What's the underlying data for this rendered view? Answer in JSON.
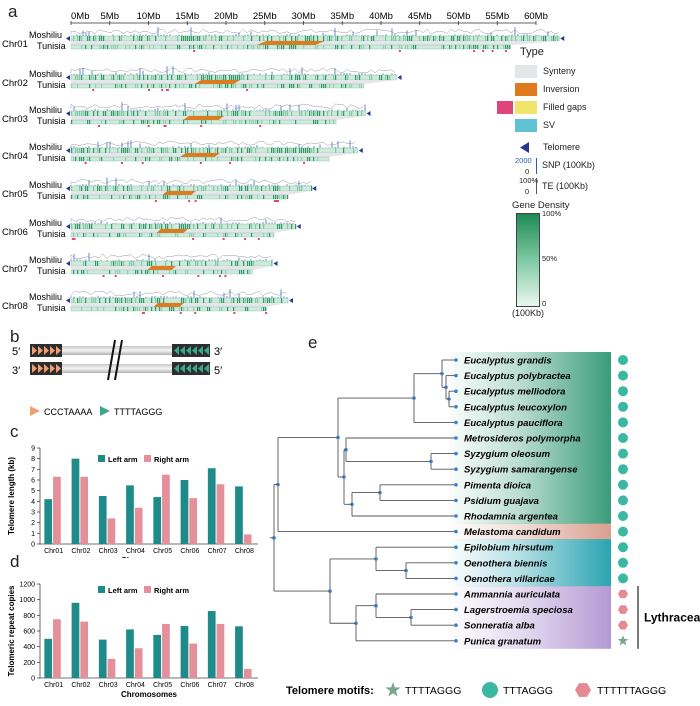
{
  "panels": {
    "a": "a",
    "b": "b",
    "c": "c",
    "d": "d",
    "e": "e"
  },
  "panel_a": {
    "scale_ticks": [
      "0Mb",
      "5Mb",
      "10Mb",
      "15Mb",
      "20Mb",
      "25Mb",
      "30Mb",
      "35Mb",
      "40Mb",
      "45Mb",
      "50Mb",
      "55Mb",
      "60Mb"
    ],
    "chromosomes": [
      {
        "name": "Chr01",
        "top": "Moshiliu",
        "bottom": "Tunisia",
        "length_mb": 63
      },
      {
        "name": "Chr02",
        "top": "Moshiliu",
        "bottom": "Tunisia",
        "length_mb": 42
      },
      {
        "name": "Chr03",
        "top": "Moshiliu",
        "bottom": "Tunisia",
        "length_mb": 38
      },
      {
        "name": "Chr04",
        "top": "Moshiliu",
        "bottom": "Tunisia",
        "length_mb": 37
      },
      {
        "name": "Chr05",
        "top": "Moshiliu",
        "bottom": "Tunisia",
        "length_mb": 31
      },
      {
        "name": "Chr06",
        "top": "Moshiliu",
        "bottom": "Tunisia",
        "length_mb": 29
      },
      {
        "name": "Chr07",
        "top": "Moshiliu",
        "bottom": "Tunisia",
        "length_mb": 26
      },
      {
        "name": "Chr08",
        "top": "Moshiliu",
        "bottom": "Tunisia",
        "length_mb": 28
      }
    ],
    "legend": {
      "type_title": "Type",
      "items": [
        {
          "label": "Synteny",
          "color": "#e4e6ea"
        },
        {
          "label": "Inversion",
          "color": "#e07a1f"
        },
        {
          "label": "Filled gaps",
          "color": "#f0e46a",
          "extra_color": "#e0457a"
        },
        {
          "label": "SV",
          "color": "#5fc3d3"
        }
      ],
      "telomere": "Telomere",
      "snp_label": "SNP  (100Kb)",
      "snp_scale": "2000",
      "snp_zero": "0",
      "te_label": "TE  (100Kb)",
      "te_scale": "100%",
      "te_zero": "0",
      "gd_title": "Gene Density",
      "gd_ticks": [
        "100%",
        "50%",
        "0"
      ],
      "gd_unit": "(100Kb)"
    }
  },
  "panel_b": {
    "five_prime": "5′",
    "three_prime": "3′",
    "motif1": "CCCTAAAA",
    "motif2": "TTTTAGGG",
    "motif1_color": "#f0a070",
    "motif2_color": "#3aa88a"
  },
  "chart_data": [
    {
      "type": "bar",
      "title": "",
      "xlabel": "Chromosomes",
      "ylabel": "Telomere length (kb)",
      "ylim": [
        0,
        9
      ],
      "yticks": [
        0,
        1,
        2,
        3,
        4,
        5,
        6,
        7,
        8,
        9
      ],
      "categories": [
        "Chr01",
        "Chr02",
        "Chr03",
        "Chr04",
        "Chr05",
        "Chr06",
        "Chr07",
        "Chr08"
      ],
      "series": [
        {
          "name": "Left arm",
          "color": "#1f8a8a",
          "values": [
            4.2,
            8.0,
            4.5,
            5.5,
            4.4,
            6.0,
            7.1,
            5.4
          ]
        },
        {
          "name": "Right arm",
          "color": "#e3909a",
          "values": [
            6.3,
            6.3,
            2.4,
            3.4,
            6.5,
            4.3,
            5.6,
            0.9
          ]
        }
      ],
      "legend": "top"
    },
    {
      "type": "bar",
      "title": "",
      "xlabel": "Chromosomes",
      "ylabel": "Telomeric repeat copies",
      "ylim": [
        0,
        1200
      ],
      "yticks": [
        0,
        200,
        400,
        600,
        800,
        1000,
        1200
      ],
      "categories": [
        "Chr01",
        "Chr02",
        "Chr03",
        "Chr04",
        "Chr05",
        "Chr06",
        "Chr07",
        "Chr08"
      ],
      "series": [
        {
          "name": "Left arm",
          "color": "#1f8a8a",
          "values": [
            500,
            960,
            490,
            620,
            550,
            665,
            855,
            660
          ]
        },
        {
          "name": "Right arm",
          "color": "#e3909a",
          "values": [
            750,
            720,
            245,
            380,
            690,
            440,
            690,
            115
          ]
        }
      ],
      "legend": "top"
    }
  ],
  "panel_e": {
    "species": [
      {
        "name": "Eucalyptus grandis",
        "motif": "TTTAGGG"
      },
      {
        "name": "Eucalyptus polybractea",
        "motif": "TTTAGGG"
      },
      {
        "name": "Eucalyptus melliodora",
        "motif": "TTTAGGG"
      },
      {
        "name": "Eucalyptus leucoxylon",
        "motif": "TTTAGGG"
      },
      {
        "name": "Eucalyptus pauciflora",
        "motif": "TTTAGGG"
      },
      {
        "name": "Metrosideros polymorpha",
        "motif": "TTTAGGG"
      },
      {
        "name": "Syzygium oleosum",
        "motif": "TTTAGGG"
      },
      {
        "name": "Syzygium samarangense",
        "motif": "TTTAGGG"
      },
      {
        "name": "Pimenta dioica",
        "motif": "TTTAGGG"
      },
      {
        "name": "Psidium guajava",
        "motif": "TTTAGGG"
      },
      {
        "name": "Rhodamnia argentea",
        "motif": "TTTAGGG"
      },
      {
        "name": "Melastoma candidum",
        "motif": "TTTAGGG"
      },
      {
        "name": "Epilobium hirsutum",
        "motif": "TTTAGGG"
      },
      {
        "name": "Oenothera biennis",
        "motif": "TTTAGGG"
      },
      {
        "name": "Oenothera villaricae",
        "motif": "TTTAGGG"
      },
      {
        "name": "Ammannia auriculata",
        "motif": "TTTTTTAGGG"
      },
      {
        "name": "Lagerstroemia speciosa",
        "motif": "TTTTTTAGGG"
      },
      {
        "name": "Sonneratia alba",
        "motif": "TTTTTTAGGG"
      },
      {
        "name": "Punica granatum",
        "motif": "TTTTAGGG"
      }
    ],
    "group_label": "Lythraceae",
    "group_colors": {
      "myrtaceae": "#3a9c7a",
      "melastomataceae": "#d9a08f",
      "onagraceae": "#2aa4b2",
      "lythraceae": "#b49ad4"
    },
    "motif_legend": {
      "title": "Telomere motifs:",
      "items": [
        {
          "label": "TTTTAGGG",
          "shape": "star",
          "color": "#7aa88e"
        },
        {
          "label": "TTTAGGG",
          "shape": "circle",
          "color": "#3ab8a2"
        },
        {
          "label": "TTTTTTAGGG",
          "shape": "hexagon",
          "color": "#e58a92"
        }
      ]
    }
  }
}
